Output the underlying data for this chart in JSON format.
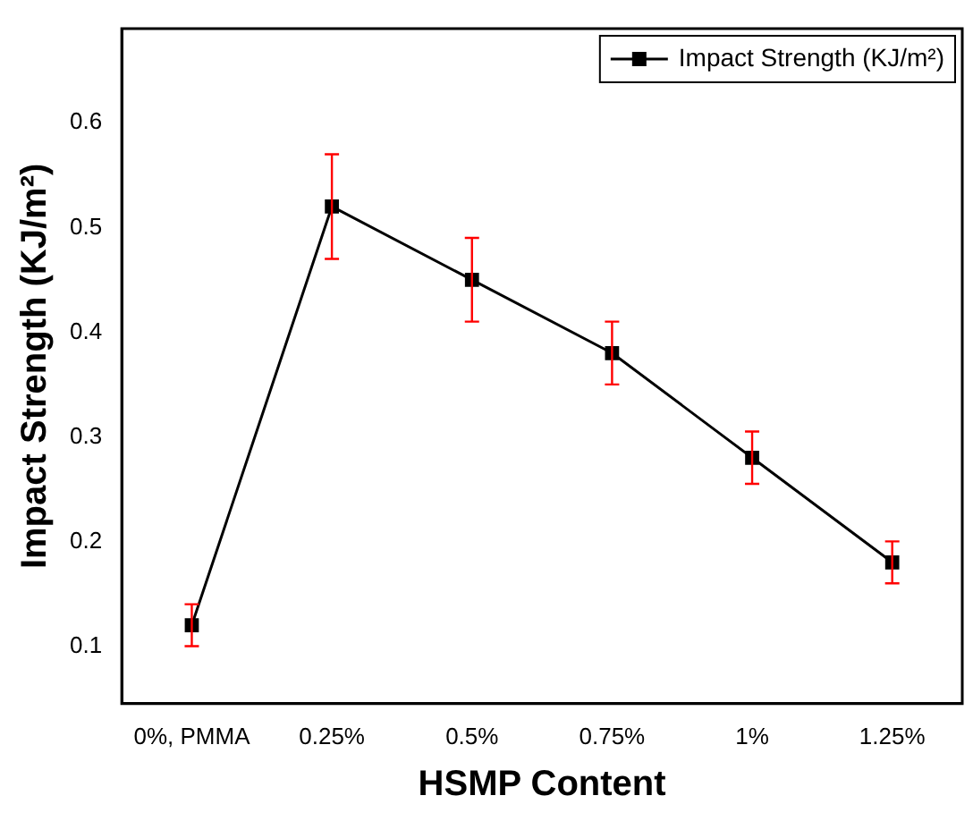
{
  "chart_data": {
    "type": "line",
    "xlabel": "HSMP Content",
    "ylabel": "Impact Strength (KJ/m²)",
    "categories": [
      "0%, PMMA",
      "0.25%",
      "0.5%",
      "0.75%",
      "1%",
      "1.25%"
    ],
    "series": [
      {
        "name": "Impact Strength (KJ/m²)",
        "color": "#000000",
        "values": [
          0.12,
          0.52,
          0.45,
          0.38,
          0.28,
          0.18
        ],
        "errors": [
          [
            0.1,
            0.14
          ],
          [
            0.47,
            0.57
          ],
          [
            0.41,
            0.49
          ],
          [
            0.35,
            0.41
          ],
          [
            0.255,
            0.305
          ],
          [
            0.16,
            0.2
          ]
        ]
      }
    ],
    "ylim": [
      0.045,
      0.69
    ],
    "yticks": [
      0.1,
      0.2,
      0.3,
      0.4,
      0.5,
      0.6
    ],
    "grid": false,
    "legend": "top right",
    "marker": "square",
    "line_style": "solid"
  }
}
